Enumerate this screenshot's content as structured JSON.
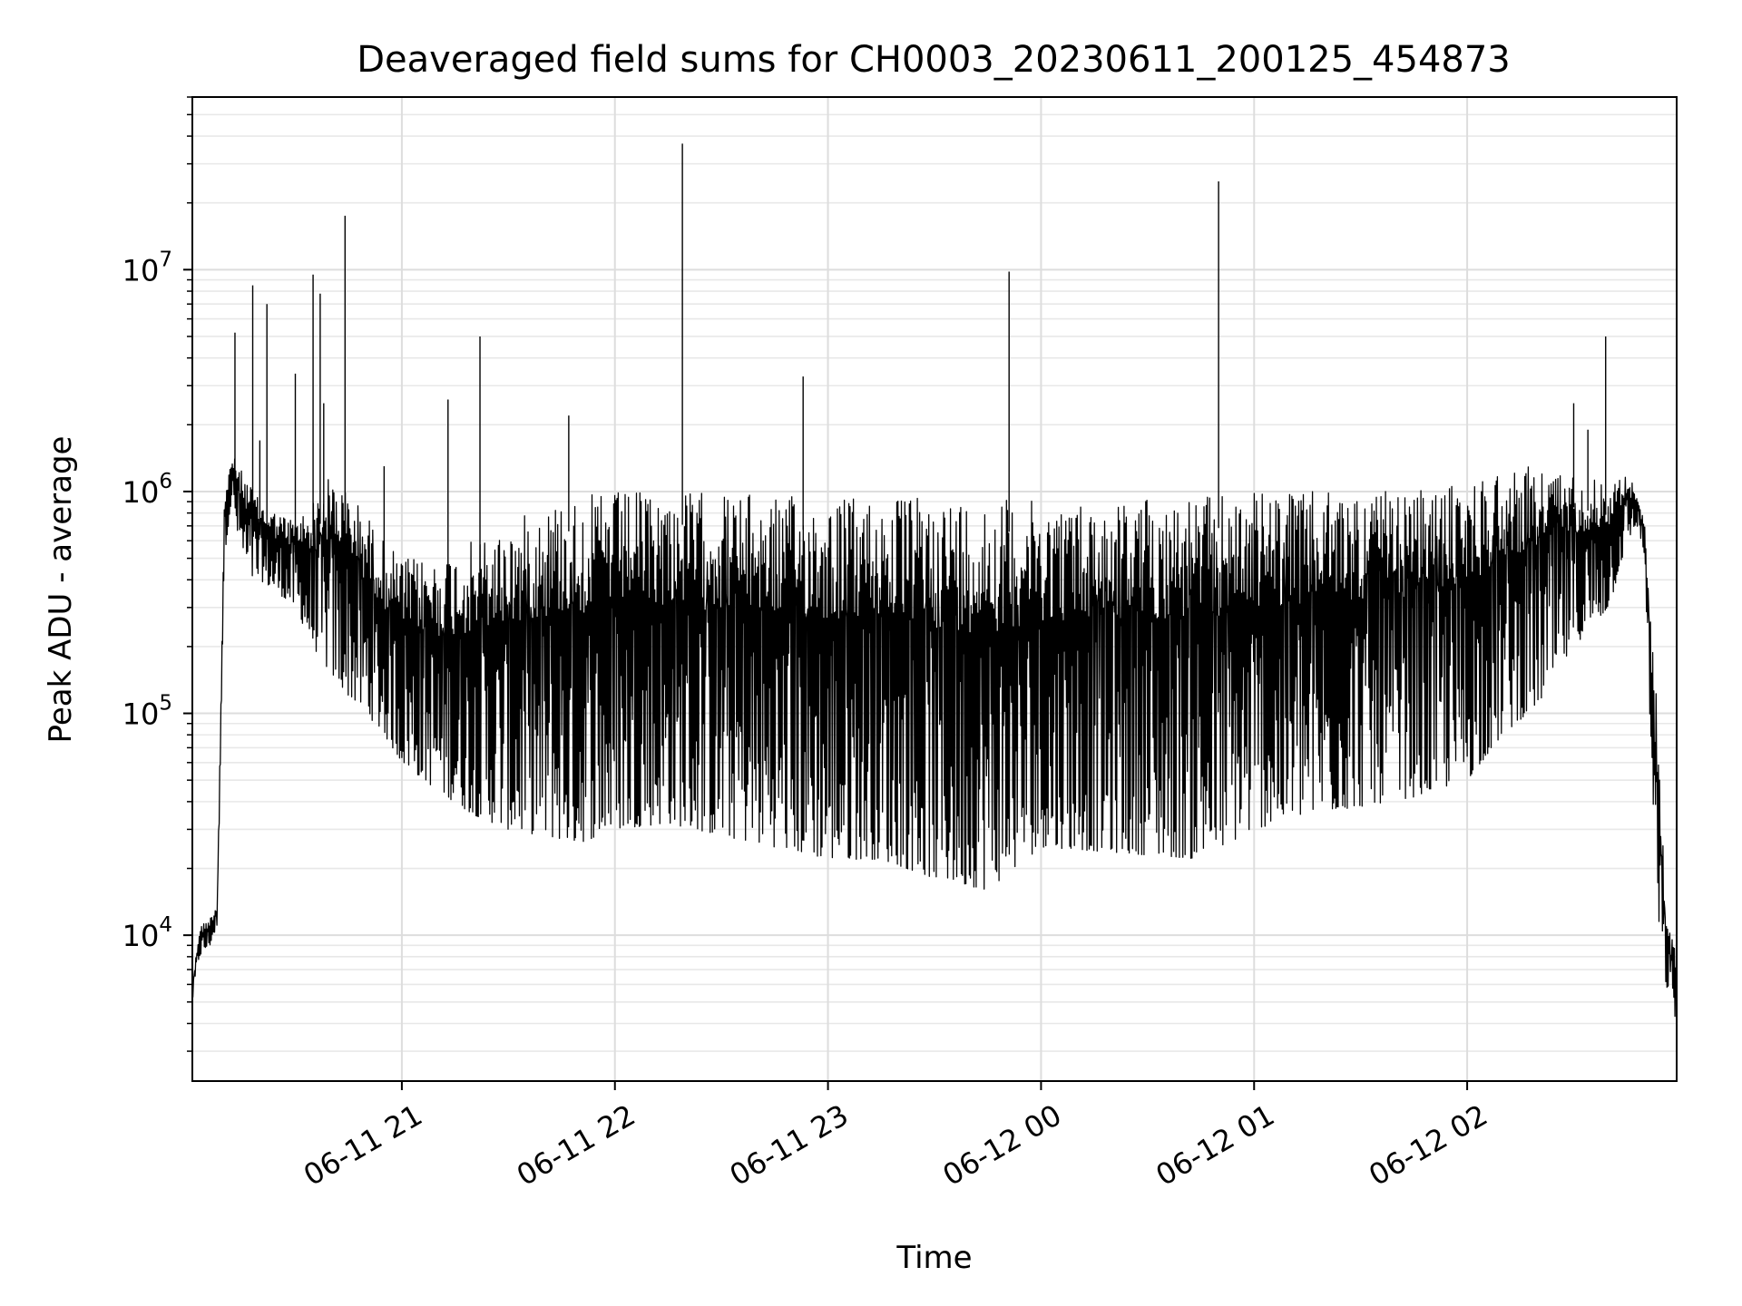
{
  "chart_data": {
    "type": "line",
    "title": "Deaveraged field sums for CH0003_20230611_200125_454873",
    "xlabel": "Time",
    "ylabel": "Peak ADU - average",
    "yscale": "log",
    "ylim": [
      2200,
      60000000
    ],
    "xlim": [
      "2023-06-11 20:01",
      "2023-06-12 02:59"
    ],
    "grid": true,
    "line_color": "#000000",
    "x_ticks": [
      {
        "value": "2023-06-11 21:00",
        "label": "06-11 21"
      },
      {
        "value": "2023-06-11 22:00",
        "label": "06-11 22"
      },
      {
        "value": "2023-06-11 23:00",
        "label": "06-11 23"
      },
      {
        "value": "2023-06-12 00:00",
        "label": "06-12 00"
      },
      {
        "value": "2023-06-12 01:00",
        "label": "06-12 01"
      },
      {
        "value": "2023-06-12 02:00",
        "label": "06-12 02"
      }
    ],
    "y_ticks": [
      {
        "value": 10000,
        "base": "10",
        "exp": "4"
      },
      {
        "value": 100000,
        "base": "10",
        "exp": "5"
      },
      {
        "value": 1000000,
        "base": "10",
        "exp": "6"
      },
      {
        "value": 10000000,
        "base": "10",
        "exp": "7"
      }
    ],
    "series": [
      {
        "values_note": "envelope of a dense noisy time series",
        "x": [
          "2023-06-11 20:01",
          "2023-06-11 20:03",
          "2023-06-11 20:06",
          "2023-06-11 20:08",
          "2023-06-11 20:10",
          "2023-06-11 20:12",
          "2023-06-11 20:14",
          "2023-06-11 20:17",
          "2023-06-11 20:20",
          "2023-06-11 20:25",
          "2023-06-11 20:30",
          "2023-06-11 20:35",
          "2023-06-11 20:40",
          "2023-06-11 20:45",
          "2023-06-11 20:50",
          "2023-06-11 20:55",
          "2023-06-11 21:00",
          "2023-06-11 21:10",
          "2023-06-11 21:20",
          "2023-06-11 21:30",
          "2023-06-11 21:40",
          "2023-06-11 21:50",
          "2023-06-11 22:00",
          "2023-06-11 22:15",
          "2023-06-11 22:30",
          "2023-06-11 22:45",
          "2023-06-11 23:00",
          "2023-06-11 23:15",
          "2023-06-11 23:30",
          "2023-06-11 23:45",
          "2023-06-12 00:00",
          "2023-06-12 00:15",
          "2023-06-12 00:30",
          "2023-06-12 00:45",
          "2023-06-12 01:00",
          "2023-06-12 01:15",
          "2023-06-12 01:30",
          "2023-06-12 01:45",
          "2023-06-12 02:00",
          "2023-06-12 02:10",
          "2023-06-12 02:20",
          "2023-06-12 02:30",
          "2023-06-12 02:40",
          "2023-06-12 02:45",
          "2023-06-12 02:48",
          "2023-06-12 02:50",
          "2023-06-12 02:53",
          "2023-06-12 02:56",
          "2023-06-12 02:59"
        ],
        "upper": [
          6000,
          11000,
          12000,
          14000,
          900000,
          1500000,
          1300000,
          1100000,
          900000,
          800000,
          750000,
          900000,
          1200000,
          1000000,
          800000,
          600000,
          500000,
          500000,
          600000,
          700000,
          900000,
          950000,
          1000000,
          1000000,
          1000000,
          950000,
          950000,
          950000,
          950000,
          950000,
          900000,
          900000,
          950000,
          950000,
          1000000,
          1000000,
          1000000,
          1000000,
          1100000,
          1300000,
          1300000,
          1200000,
          1100000,
          1200000,
          1000000,
          700000,
          150000,
          13000,
          8000
        ],
        "lower": [
          5000,
          8000,
          9000,
          11000,
          500000,
          900000,
          600000,
          400000,
          400000,
          350000,
          300000,
          200000,
          150000,
          120000,
          100000,
          80000,
          60000,
          45000,
          35000,
          30000,
          28000,
          26000,
          30000,
          32000,
          28000,
          25000,
          22000,
          22000,
          18000,
          16000,
          25000,
          24000,
          23000,
          22000,
          30000,
          35000,
          38000,
          42000,
          50000,
          80000,
          110000,
          200000,
          300000,
          600000,
          700000,
          500000,
          15000,
          6000,
          4000
        ]
      }
    ],
    "spikes": [
      {
        "x": "2023-06-11 20:13",
        "y": 5200000
      },
      {
        "x": "2023-06-11 20:18",
        "y": 8500000
      },
      {
        "x": "2023-06-11 20:20",
        "y": 1700000
      },
      {
        "x": "2023-06-11 20:22",
        "y": 7000000
      },
      {
        "x": "2023-06-11 20:30",
        "y": 3400000
      },
      {
        "x": "2023-06-11 20:35",
        "y": 9500000
      },
      {
        "x": "2023-06-11 20:37",
        "y": 7800000
      },
      {
        "x": "2023-06-11 20:38",
        "y": 2500000
      },
      {
        "x": "2023-06-11 20:44",
        "y": 17500000
      },
      {
        "x": "2023-06-11 20:55",
        "y": 1300000
      },
      {
        "x": "2023-06-11 21:13",
        "y": 2600000
      },
      {
        "x": "2023-06-11 21:22",
        "y": 5000000
      },
      {
        "x": "2023-06-11 21:47",
        "y": 2200000
      },
      {
        "x": "2023-06-11 22:19",
        "y": 37000000
      },
      {
        "x": "2023-06-11 22:53",
        "y": 3300000
      },
      {
        "x": "2023-06-11 23:51",
        "y": 9800000
      },
      {
        "x": "2023-06-12 00:50",
        "y": 25000000
      },
      {
        "x": "2023-06-12 02:30",
        "y": 2500000
      },
      {
        "x": "2023-06-12 02:34",
        "y": 1900000
      },
      {
        "x": "2023-06-12 02:39",
        "y": 5000000
      }
    ]
  }
}
